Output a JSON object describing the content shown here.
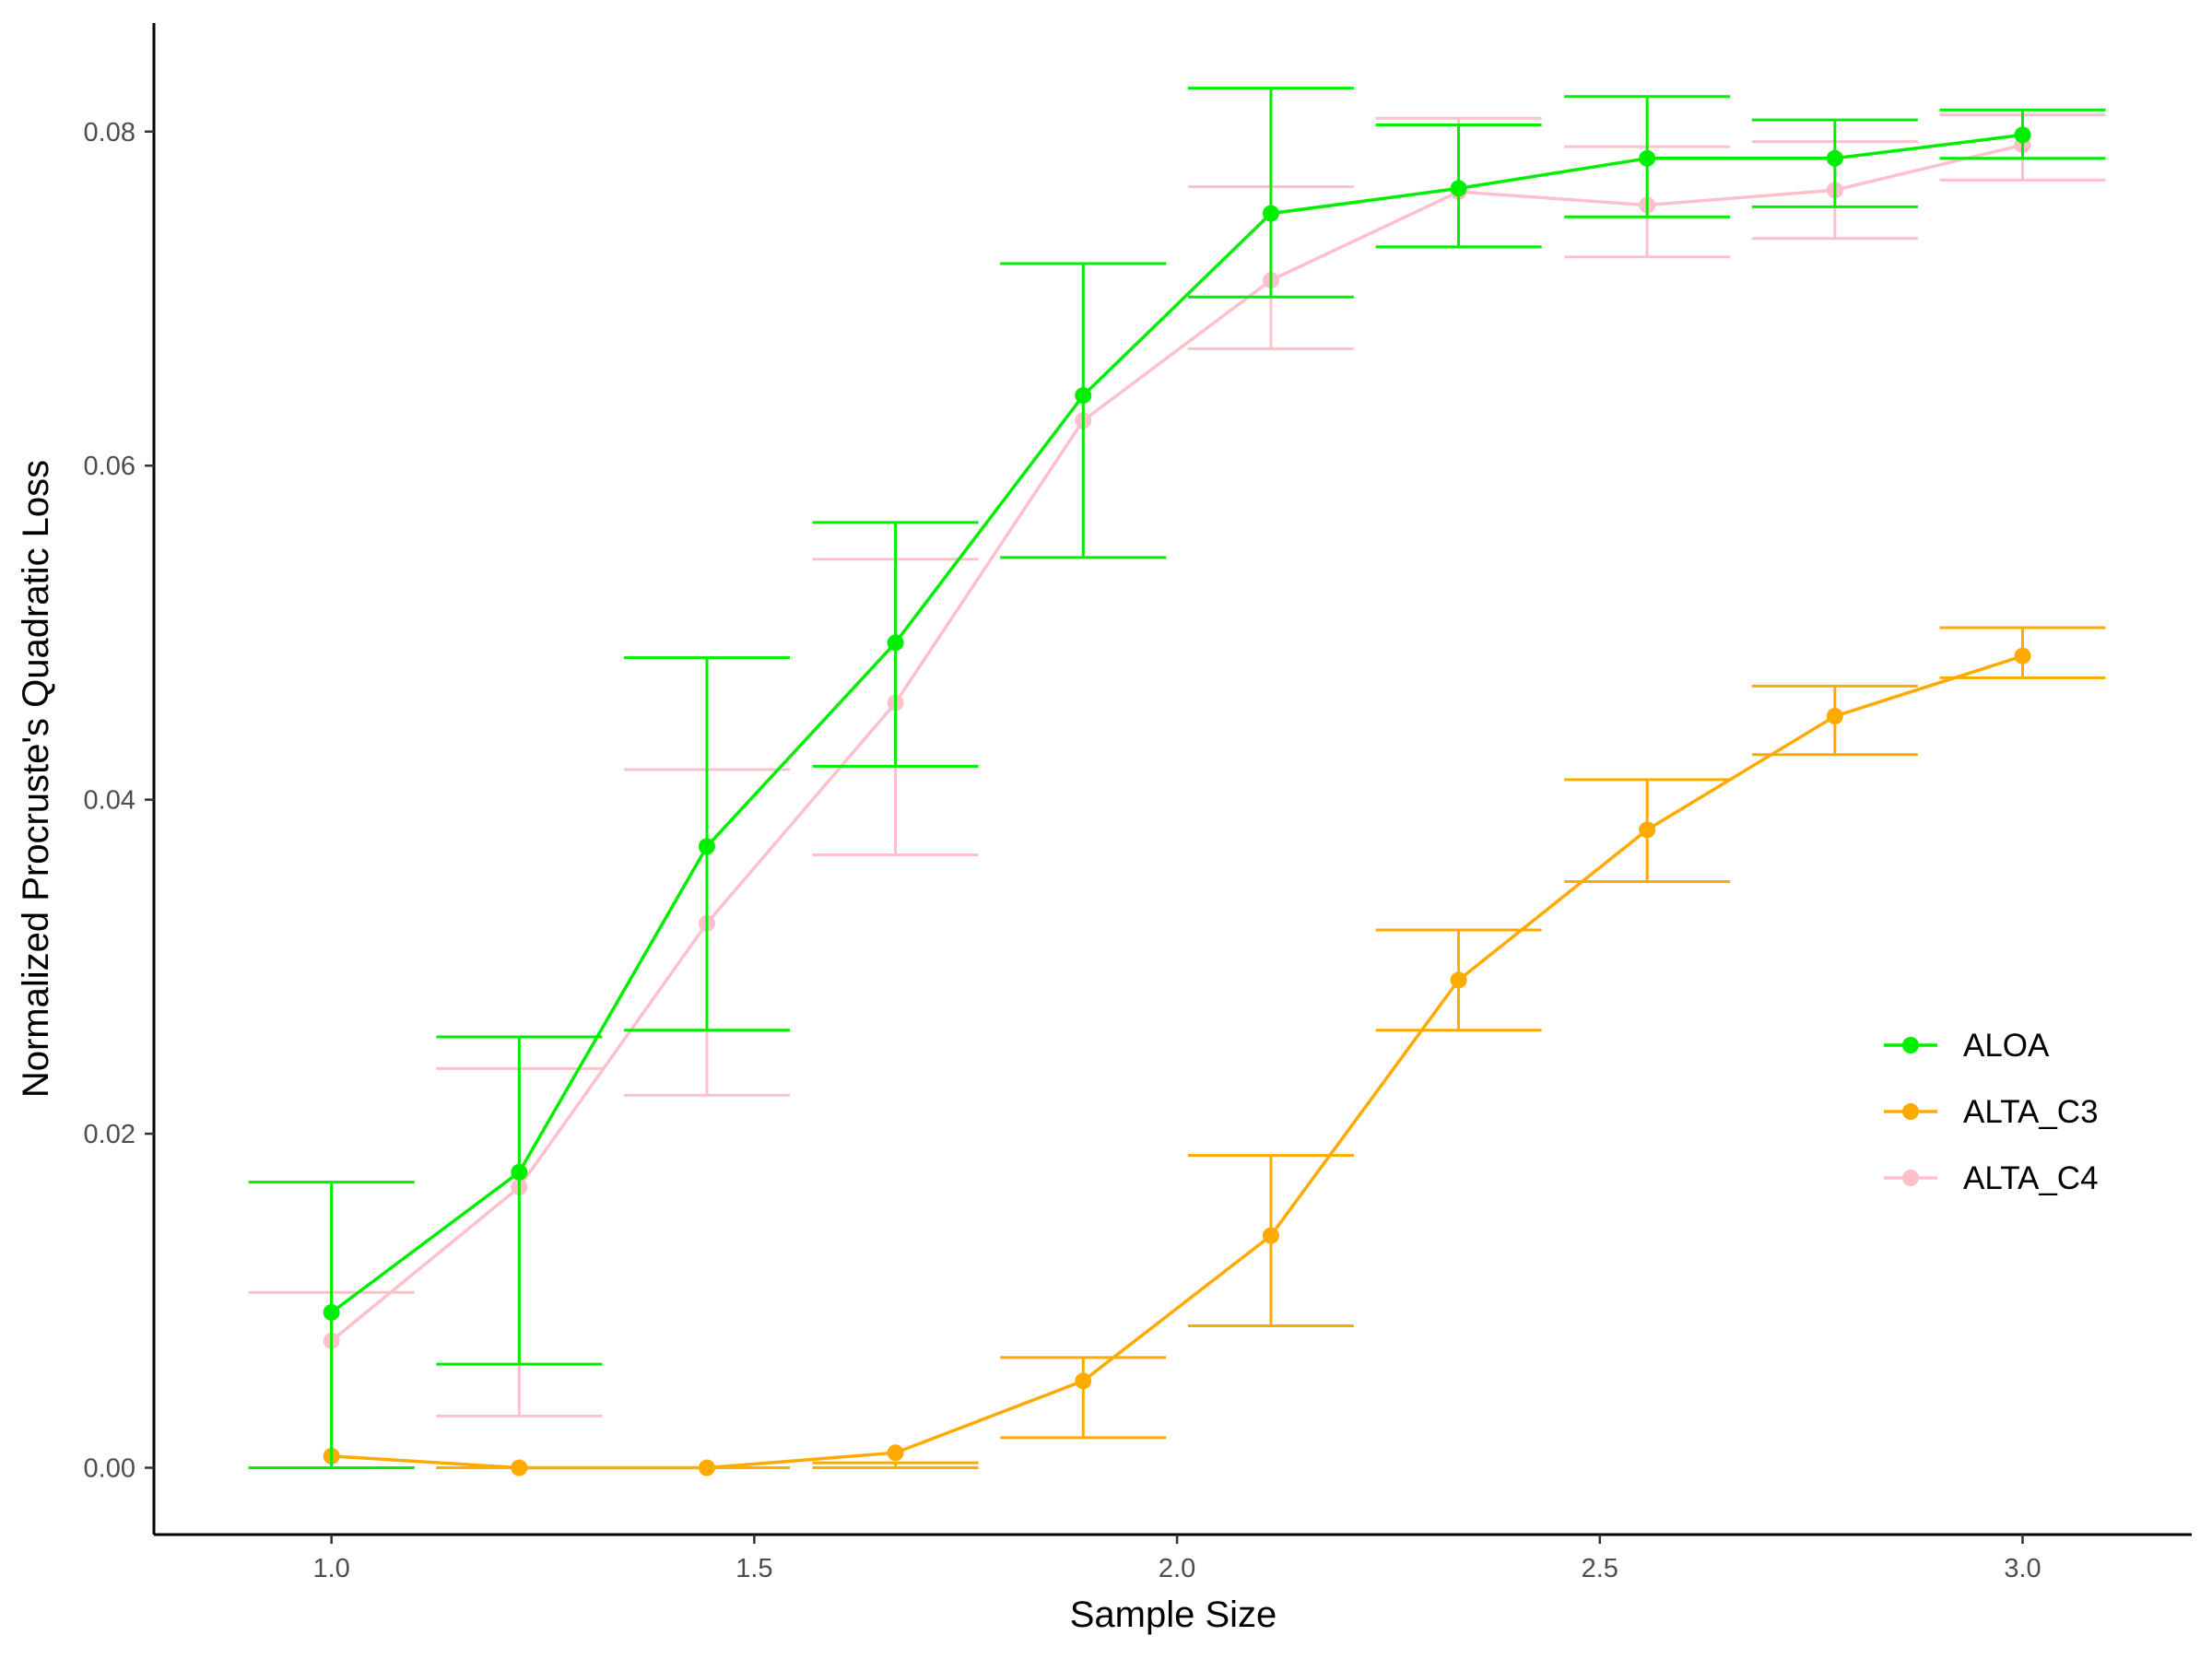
{
  "chart_data": {
    "type": "line",
    "title": "",
    "xlabel": "Sample Size",
    "ylabel": "Normalized Procruste's Quadratic Loss",
    "xlim": [
      0.79,
      3.2
    ],
    "ylim": [
      -0.004,
      0.0865
    ],
    "x_ticks": [
      1.0,
      1.5,
      2.0,
      2.5,
      3.0
    ],
    "x_tick_labels": [
      "1.0",
      "1.5",
      "2.0",
      "2.5",
      "3.0"
    ],
    "y_ticks": [
      0.0,
      0.02,
      0.04,
      0.06,
      0.08
    ],
    "y_tick_labels": [
      "0.00",
      "0.02",
      "0.04",
      "0.06",
      "0.08"
    ],
    "grid": false,
    "legend_position": "right",
    "x": [
      1.0,
      1.222,
      1.444,
      1.667,
      1.889,
      2.111,
      2.333,
      2.556,
      2.778,
      3.0
    ],
    "series": [
      {
        "name": "ALOA",
        "color": "#00ee00",
        "values": [
          0.0093,
          0.0177,
          0.0372,
          0.0494,
          0.0642,
          0.0751,
          0.0766,
          0.0784,
          0.0784,
          0.0798
        ],
        "err_low": [
          0.0,
          0.0062,
          0.0262,
          0.042,
          0.0545,
          0.0701,
          0.0731,
          0.0749,
          0.0755,
          0.0784
        ],
        "err_high": [
          0.0171,
          0.0258,
          0.0485,
          0.0566,
          0.0721,
          0.0826,
          0.0804,
          0.0821,
          0.0807,
          0.0813
        ]
      },
      {
        "name": "ALTA_C3",
        "color": "#ffaa00",
        "values": [
          0.0007,
          0.0,
          0.0,
          0.0009,
          0.0052,
          0.0139,
          0.0292,
          0.0382,
          0.045,
          0.0486
        ],
        "err_low": [
          0.0,
          0.0,
          0.0,
          0.0,
          0.0018,
          0.0085,
          0.0262,
          0.0351,
          0.0427,
          0.0473
        ],
        "err_high": [
          0.0,
          0.0,
          0.0,
          0.0003,
          0.0066,
          0.0187,
          0.0322,
          0.0412,
          0.0468,
          0.0503
        ]
      },
      {
        "name": "ALTA_C4",
        "color": "#ffc0cb",
        "values": [
          0.0076,
          0.0168,
          0.0326,
          0.0458,
          0.0627,
          0.0711,
          0.0764,
          0.0756,
          0.0765,
          0.0792
        ],
        "err_low": [
          0.0,
          0.0031,
          0.0223,
          0.0367,
          0.0545,
          0.067,
          0.0731,
          0.0725,
          0.0736,
          0.0771
        ],
        "err_high": [
          0.0105,
          0.0239,
          0.0418,
          0.0544,
          0.0721,
          0.0767,
          0.0808,
          0.0791,
          0.0794,
          0.081
        ]
      }
    ]
  }
}
